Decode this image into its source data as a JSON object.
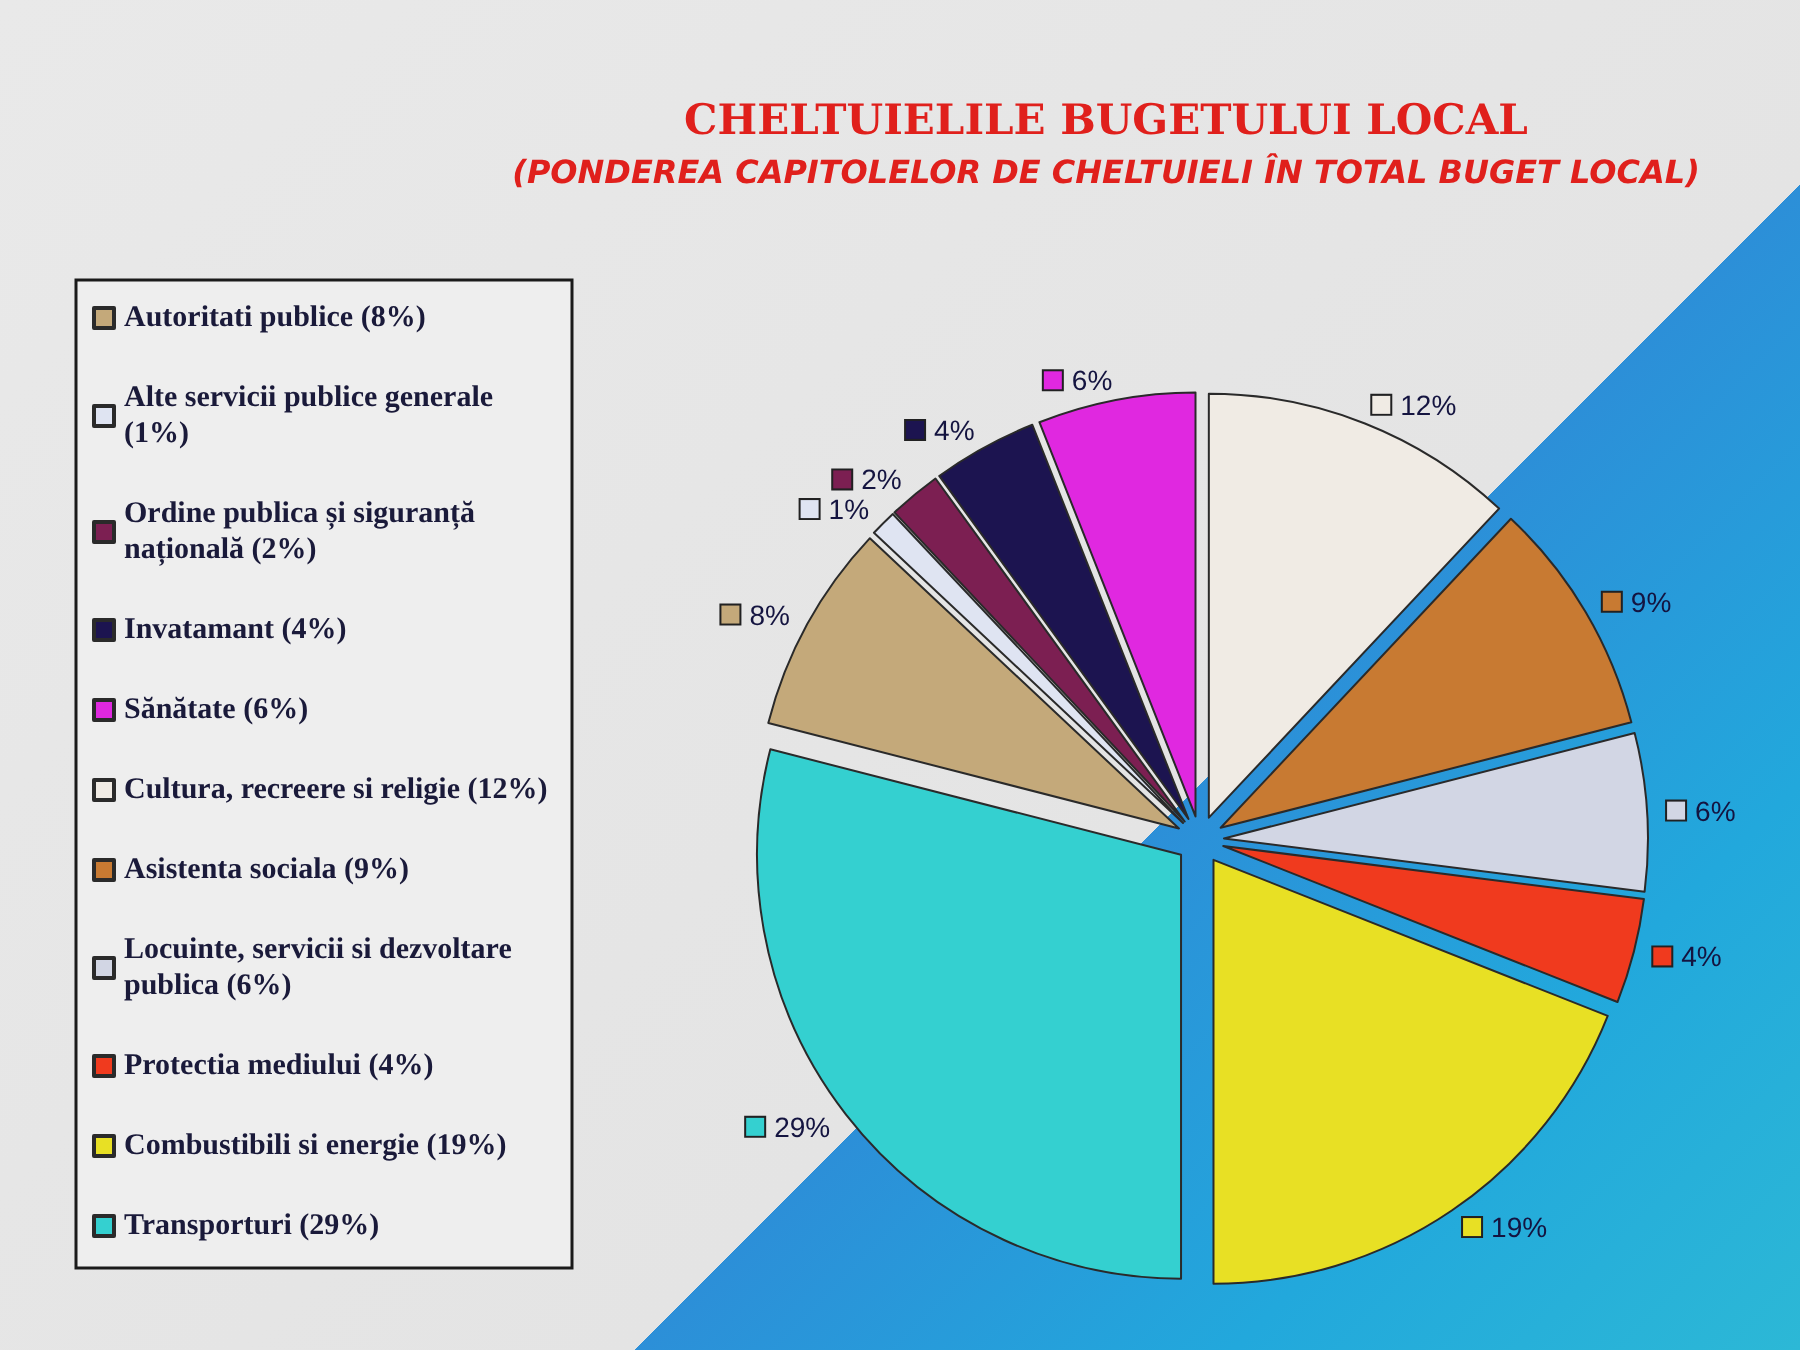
{
  "chart_data": {
    "type": "pie",
    "title": "CHELTUIELILE BUGETULUI LOCAL",
    "subtitle": "(PONDEREA CAPITOLELOR DE CHELTUIELI ÎN TOTAL BUGET LOCAL)",
    "categories": [
      "Autoritati publice (8%)",
      "Alte servicii publice generale (1%)",
      "Ordine publica și siguranță națională (2%)",
      "Invatamant (4%)",
      "Sănătate (6%)",
      "Cultura, recreere si religie (12%)",
      "Asistenta sociala (9%)",
      "Locuinte, servicii si dezvoltare publica (6%)",
      "Protectia mediului (4%)",
      "Combustibili si energie (19%)",
      "Transporturi (29%)"
    ],
    "values": [
      8,
      1,
      2,
      4,
      6,
      12,
      9,
      6,
      4,
      19,
      29
    ],
    "colors": [
      "#c4a97a",
      "#dfe4f2",
      "#7c1f52",
      "#1c1450",
      "#e028e0",
      "#f0ebe4",
      "#c87a32",
      "#d2d6e4",
      "#f03a1e",
      "#e8e024",
      "#34d0d0"
    ],
    "value_labels": [
      "8%",
      "1%",
      "2%",
      "4%",
      "6%",
      "12%",
      "9%",
      "6%",
      "4%",
      "19%",
      "29%"
    ],
    "legend": "left"
  }
}
